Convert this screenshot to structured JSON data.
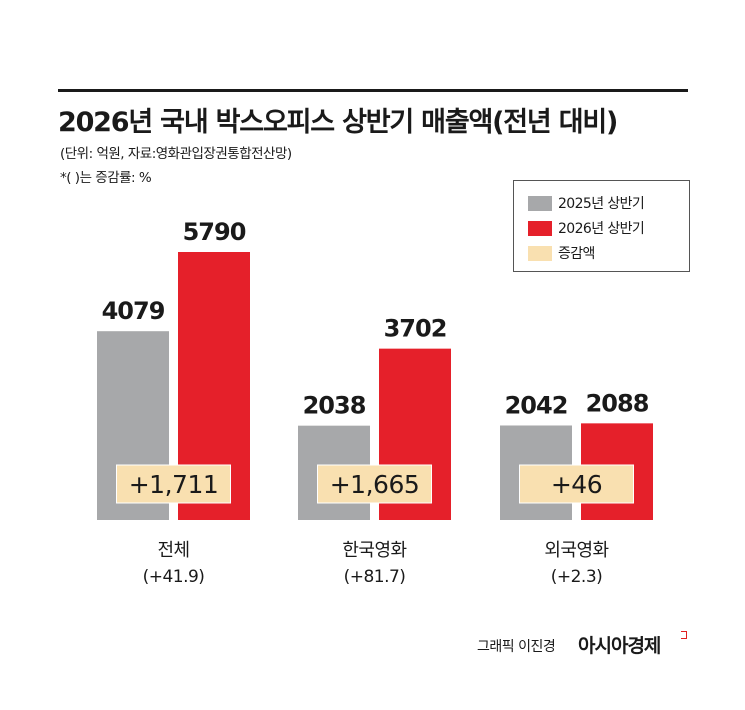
{
  "title": "2026년 국내 박스오피스 상반기 매출액(전년 대비)",
  "subtitle": "(단위: 억원, 자료:영화관입장권통합전산망)",
  "note": "*(  )는 증감률: %",
  "footer": {
    "credit": "그래픽 이진경",
    "brand": "아시아경제"
  },
  "colors": {
    "y2025": "#a7a8aa",
    "y2026": "#e5202a",
    "change": "#f9e0b0"
  },
  "chart_data": {
    "type": "bar",
    "categories": [
      "전체",
      "한국영화",
      "외국영화"
    ],
    "category_sublabels": [
      "(+41.9)",
      "(+81.7)",
      "(+2.3)"
    ],
    "series": [
      {
        "name": "2025년 상반기",
        "values": [
          4079,
          2038,
          2042
        ]
      },
      {
        "name": "2026년 상반기",
        "values": [
          5790,
          3702,
          2088
        ]
      }
    ],
    "change_name": "증감액",
    "change_labels": [
      "+1,711",
      "+1,665",
      "+46"
    ],
    "pct_change": [
      41.9,
      81.7,
      2.3
    ],
    "ylim": [
      0,
      5790
    ],
    "legend": "top-right",
    "grid": false
  }
}
